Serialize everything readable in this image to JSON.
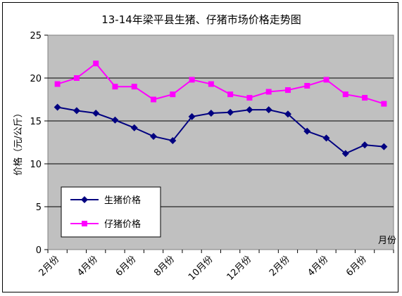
{
  "chart_data": {
    "type": "line",
    "title": "13-14年梁平县生猪、仔猪市场价格走势图",
    "ylabel": "价格（元/公斤）",
    "xlabel": "月份",
    "ylim": [
      0,
      25
    ],
    "yticks": [
      0,
      5,
      10,
      15,
      20,
      25
    ],
    "grid": true,
    "legend_position": "lower-left",
    "categories": [
      "2月份",
      "",
      "4月份",
      "",
      "6月份",
      "",
      "8月份",
      "",
      "10月份",
      "",
      "12月份",
      "",
      "2月份",
      "",
      "4月份",
      "",
      "6月份",
      ""
    ],
    "series": [
      {
        "name": "生猪价格",
        "color": "#000080",
        "marker": "diamond",
        "values": [
          16.6,
          16.2,
          15.9,
          15.1,
          14.2,
          13.2,
          12.7,
          15.5,
          15.9,
          16.0,
          16.3,
          16.3,
          15.8,
          13.8,
          13.0,
          11.2,
          12.2,
          12.0
        ]
      },
      {
        "name": "仔猪价格",
        "color": "#ff00ff",
        "marker": "square",
        "values": [
          19.3,
          20.0,
          21.7,
          19.0,
          19.0,
          17.5,
          18.1,
          19.8,
          19.3,
          18.1,
          17.7,
          18.4,
          18.6,
          19.1,
          19.8,
          18.1,
          17.7,
          17.0
        ]
      }
    ]
  }
}
